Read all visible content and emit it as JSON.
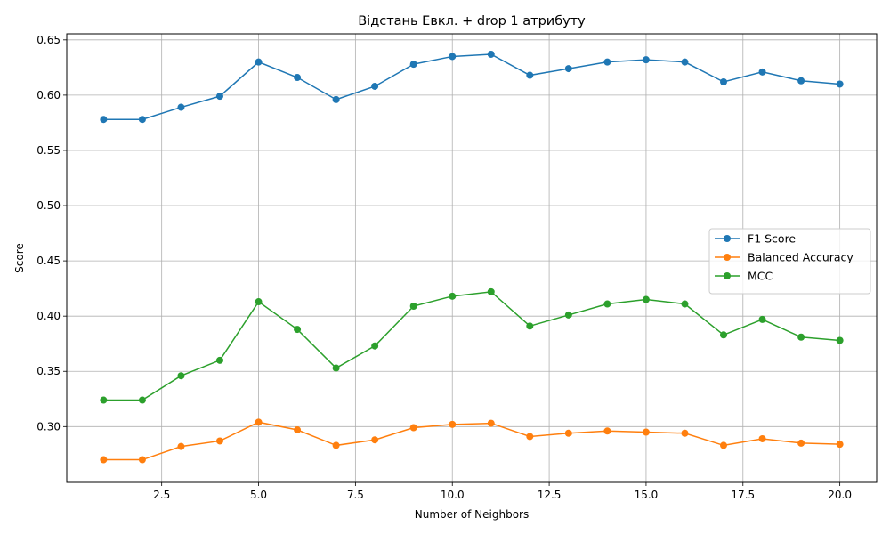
{
  "chart_data": {
    "type": "line",
    "title": "Відстань Евкл. + drop 1 атрибуту",
    "xlabel": "Number of Neighbors",
    "ylabel": "Score",
    "xlim": [
      0.05,
      20.95
    ],
    "ylim": [
      0.2495,
      0.6555
    ],
    "xticks": [
      2.5,
      5.0,
      7.5,
      10.0,
      12.5,
      15.0,
      17.5,
      20.0
    ],
    "xtick_labels": [
      "2.5",
      "5.0",
      "7.5",
      "10.0",
      "12.5",
      "15.0",
      "17.5",
      "20.0"
    ],
    "yticks": [
      0.3,
      0.35,
      0.4,
      0.45,
      0.5,
      0.55,
      0.6,
      0.65
    ],
    "ytick_labels": [
      "0.30",
      "0.35",
      "0.40",
      "0.45",
      "0.50",
      "0.55",
      "0.60",
      "0.65"
    ],
    "grid": true,
    "legend_position": "center-right",
    "x": [
      1,
      2,
      3,
      4,
      5,
      6,
      7,
      8,
      9,
      10,
      11,
      12,
      13,
      14,
      15,
      16,
      17,
      18,
      19,
      20
    ],
    "series": [
      {
        "name": "F1 Score",
        "color": "#1f77b4",
        "values": [
          0.578,
          0.578,
          0.589,
          0.599,
          0.63,
          0.616,
          0.596,
          0.608,
          0.628,
          0.635,
          0.637,
          0.618,
          0.624,
          0.63,
          0.632,
          0.63,
          0.612,
          0.621,
          0.613,
          0.61
        ]
      },
      {
        "name": "Balanced Accuracy",
        "color": "#ff7f0e",
        "values": [
          0.27,
          0.27,
          0.282,
          0.287,
          0.304,
          0.297,
          0.283,
          0.288,
          0.299,
          0.302,
          0.303,
          0.291,
          0.294,
          0.296,
          0.295,
          0.294,
          0.283,
          0.289,
          0.285,
          0.284
        ]
      },
      {
        "name": "MCC",
        "color": "#2ca02c",
        "values": [
          0.324,
          0.324,
          0.346,
          0.36,
          0.413,
          0.388,
          0.353,
          0.373,
          0.409,
          0.418,
          0.422,
          0.391,
          0.401,
          0.411,
          0.415,
          0.411,
          0.383,
          0.397,
          0.381,
          0.378
        ]
      }
    ]
  }
}
